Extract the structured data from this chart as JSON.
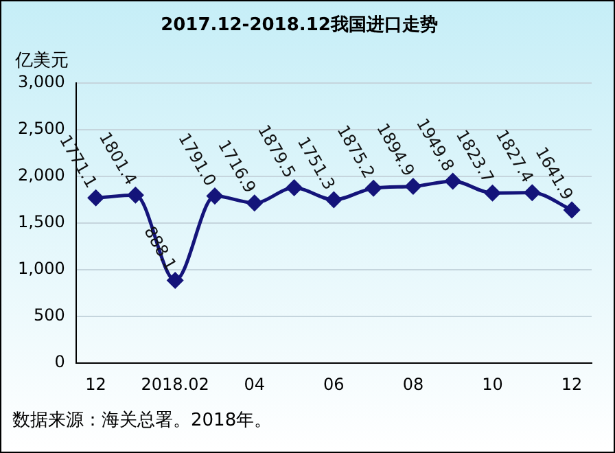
{
  "chart_data": {
    "type": "line",
    "title": "2017.12-2018.12我国进口走势",
    "ylabel": "亿美元",
    "categories": [
      "12",
      null,
      "2018.02",
      null,
      "04",
      null,
      "06",
      null,
      "08",
      null,
      "10",
      null,
      "12"
    ],
    "series": [
      {
        "color": "#14147a",
        "values": [
          1771.1,
          1801.4,
          888.1,
          1791.0,
          1716.9,
          1879.5,
          1751.3,
          1875.2,
          1894.9,
          1949.8,
          1823.7,
          1827.4,
          1641.9
        ],
        "value_labels": [
          "1771.1",
          "1801.4",
          "888.1",
          "1791.0",
          "1716.9",
          "1879.5",
          "1751.3",
          "1875.2",
          "1894.9",
          "1949.8",
          "1823.7",
          "1827.4",
          "1641.9"
        ]
      }
    ],
    "ylim": [
      0,
      3000
    ],
    "yticks": [
      {
        "value": 0,
        "label": "0"
      },
      {
        "value": 500,
        "label": "500"
      },
      {
        "value": 1000,
        "label": "1,000"
      },
      {
        "value": 1500,
        "label": "1,500"
      },
      {
        "value": 2000,
        "label": "2,000"
      },
      {
        "value": 2500,
        "label": "2,500"
      },
      {
        "value": 3000,
        "label": "3,000"
      }
    ],
    "grid": "y",
    "legend": false,
    "marker": "diamond",
    "line_style": "solid",
    "annotations": [
      "数据来源：海关总署。2018年。"
    ]
  }
}
